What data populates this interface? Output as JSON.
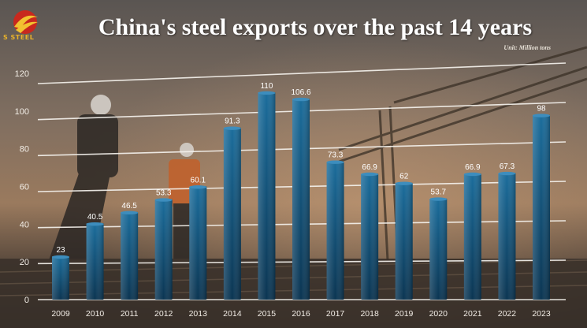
{
  "brand": {
    "logo_text": "S STEEL"
  },
  "colors": {
    "bar_top": "#1b6d9c",
    "bar_bottom": "#0b3552",
    "grid": "#f4f1ec"
  },
  "chart_data": {
    "type": "bar",
    "title": "China's steel exports over the past 14 years",
    "unit_note": "Unit: Million tons",
    "xlabel": "",
    "ylabel": "",
    "ylim": [
      0,
      120
    ],
    "yticks": [
      0,
      20,
      40,
      60,
      80,
      100,
      120
    ],
    "grid": true,
    "categories": [
      "2009",
      "2010",
      "2011",
      "2012",
      "2013",
      "2014",
      "2015",
      "2016",
      "2017",
      "2018",
      "2019",
      "2020",
      "2021",
      "2022",
      "2023"
    ],
    "values": [
      23,
      40.5,
      46.5,
      53.3,
      60.1,
      91.3,
      110,
      106.6,
      73.3,
      66.9,
      62,
      53.7,
      66.9,
      67.3,
      98
    ],
    "value_labels": [
      "23",
      "40.5",
      "46.5",
      "53.3",
      "60.1",
      "91.3",
      "110",
      "106.6",
      "73.3",
      "66.9",
      "62",
      "53.7",
      "66.9",
      "67.3",
      "98"
    ]
  }
}
